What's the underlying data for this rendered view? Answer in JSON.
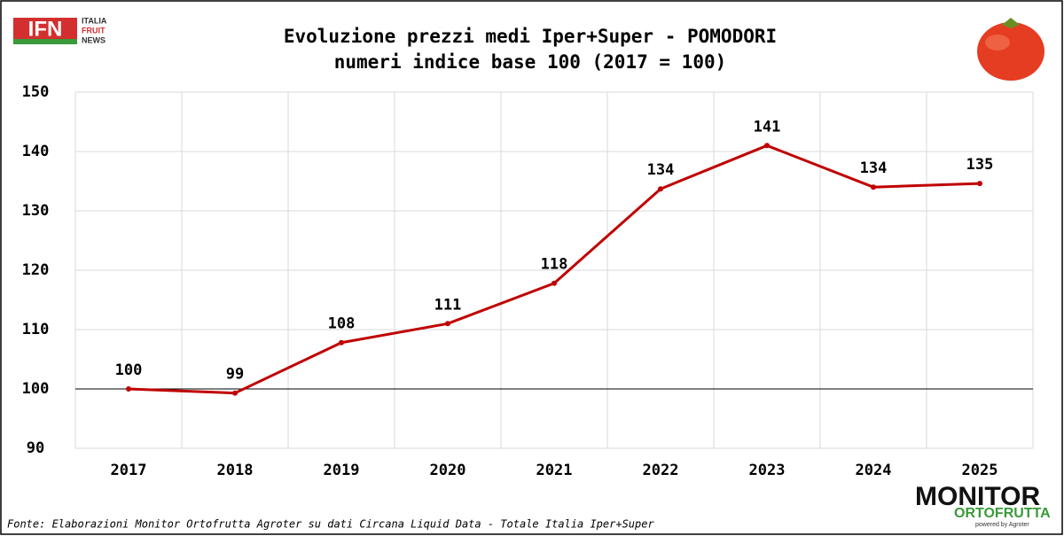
{
  "chart_data": {
    "type": "line",
    "title": "Evoluzione prezzi medi Iper+Super - POMODORI",
    "subtitle": "numeri indice base 100 (2017 = 100)",
    "categories": [
      "2017",
      "2018",
      "2019",
      "2020",
      "2021",
      "2022",
      "2023",
      "2024",
      "2025"
    ],
    "values": [
      100,
      99.3,
      107.8,
      111,
      117.8,
      133.7,
      141,
      134,
      134.6
    ],
    "value_labels": [
      "100",
      "99",
      "108",
      "111",
      "118",
      "134",
      "141",
      "134",
      "135"
    ],
    "color": "#c00000",
    "ylim": [
      90,
      150
    ],
    "yticks": [
      90,
      100,
      110,
      120,
      130,
      140,
      150
    ],
    "reference_line": 100,
    "grid": true,
    "source": "Fonte: Elaborazioni Monitor Ortofrutta Agroter su dati Circana Liquid Data - Totale Italia Iper+Super"
  },
  "branding": {
    "ifn": "IFN",
    "ifn_lines": [
      "ITALIA",
      "FRUIT",
      "NEWS"
    ],
    "monitor": "MONITOR",
    "ortofrutta": "ORTOFRUTTA",
    "powered": "powered by Agroter"
  }
}
